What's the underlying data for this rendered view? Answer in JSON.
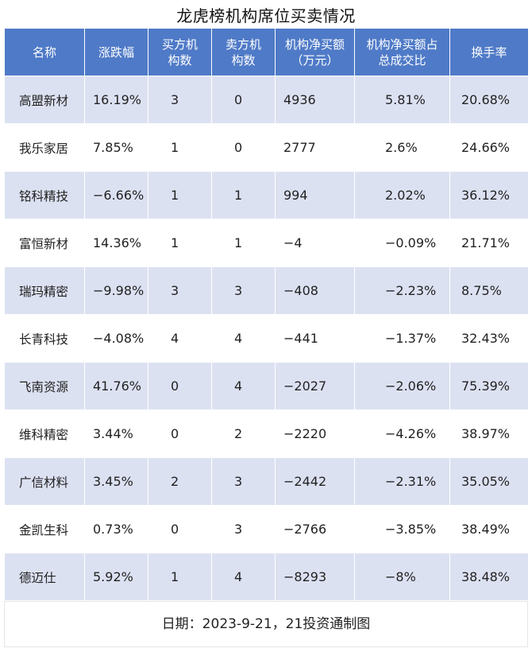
{
  "title": "龙虎榜机构席位买卖情况",
  "headers": {
    "name": "名称",
    "change": "涨跌幅",
    "buy_line1": "买方机",
    "buy_line2": "构数",
    "sell_line1": "卖方机",
    "sell_line2": "构数",
    "net_line1": "机构净买额",
    "net_line2": "（万元）",
    "pct_line1": "机构净买额占",
    "pct_line2": "总成交比",
    "turnover": "换手率"
  },
  "rows": [
    {
      "name": "高盟新材",
      "change": "16.19%",
      "buy": "3",
      "sell": "0",
      "net": "4936",
      "pct": "5.81%",
      "turnover": "20.68%"
    },
    {
      "name": "我乐家居",
      "change": "7.85%",
      "buy": "1",
      "sell": "0",
      "net": "2777",
      "pct": "2.6%",
      "turnover": "24.66%"
    },
    {
      "name": "铭科精技",
      "change": "−6.66%",
      "buy": "1",
      "sell": "1",
      "net": "994",
      "pct": "2.02%",
      "turnover": "36.12%"
    },
    {
      "name": "富恒新材",
      "change": "14.36%",
      "buy": "1",
      "sell": "1",
      "net": "−4",
      "pct": "−0.09%",
      "turnover": "21.71%"
    },
    {
      "name": "瑞玛精密",
      "change": "−9.98%",
      "buy": "3",
      "sell": "3",
      "net": "−408",
      "pct": "−2.23%",
      "turnover": "8.75%"
    },
    {
      "name": "长青科技",
      "change": "−4.08%",
      "buy": "4",
      "sell": "4",
      "net": "−441",
      "pct": "−1.37%",
      "turnover": "32.43%"
    },
    {
      "name": "飞南资源",
      "change": "41.76%",
      "buy": "0",
      "sell": "4",
      "net": "−2027",
      "pct": "−2.06%",
      "turnover": "75.39%"
    },
    {
      "name": "维科精密",
      "change": "3.44%",
      "buy": "0",
      "sell": "2",
      "net": "−2220",
      "pct": "−4.26%",
      "turnover": "38.97%"
    },
    {
      "name": "广信材料",
      "change": "3.45%",
      "buy": "2",
      "sell": "3",
      "net": "−2442",
      "pct": "−2.31%",
      "turnover": "35.05%"
    },
    {
      "name": "金凯生科",
      "change": "0.73%",
      "buy": "0",
      "sell": "3",
      "net": "−2766",
      "pct": "−3.85%",
      "turnover": "38.49%"
    },
    {
      "name": "德迈仕",
      "change": "5.92%",
      "buy": "1",
      "sell": "4",
      "net": "−8293",
      "pct": "−8%",
      "turnover": "38.48%"
    }
  ],
  "footer": "日期：2023-9-21，21投资通制图",
  "colors": {
    "header_bg": "#4f7ac7",
    "row_alt_bg": "#dce1f2",
    "row_bg": "#ffffff"
  }
}
